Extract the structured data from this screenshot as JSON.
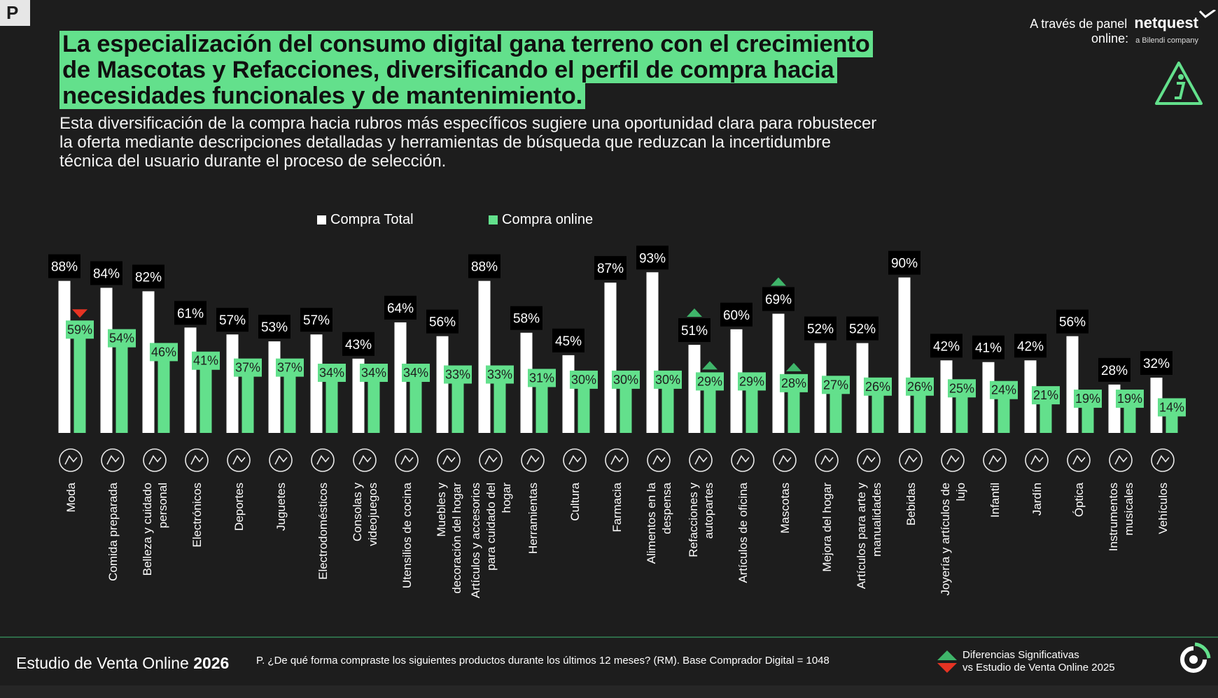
{
  "header": {
    "corner_badge": "P",
    "title": "La especialización del consumo digital gana terreno con el crecimiento de Mascotas y Refacciones, diversificando el perfil de compra hacia necesidades funcionales y de mantenimiento.",
    "subtitle": "Esta diversificación de la compra hacia rubros más específicos sugiere una oportunidad clara para robustecer la oferta mediante descripciones detalladas y herramientas de búsqueda que reduzcan la incertidumbre técnica del usuario durante el proceso de selección.",
    "brand_prefix_line1": "A través de panel",
    "brand_prefix_line2": "online:",
    "brand_name": "netquest",
    "brand_sub": "a Bilendi company",
    "info_icon": "info-triangle-icon"
  },
  "colors": {
    "background": "#1d1d1d",
    "total_bar": "#ffffff",
    "online_bar": "#63e08c",
    "up_arrow": "#3fb56a",
    "down_arrow": "#e63323"
  },
  "chart_data": {
    "type": "bar",
    "legend_position": "top-center",
    "series": [
      {
        "name": "Compra Total",
        "values": [
          88,
          84,
          82,
          61,
          57,
          53,
          57,
          43,
          64,
          56,
          88,
          58,
          45,
          87,
          93,
          51,
          60,
          69,
          52,
          52,
          90,
          42,
          41,
          42,
          56,
          28,
          32
        ]
      },
      {
        "name": "Compra online",
        "values": [
          59,
          54,
          46,
          41,
          37,
          37,
          34,
          34,
          34,
          33,
          33,
          31,
          30,
          30,
          30,
          29,
          29,
          28,
          27,
          26,
          26,
          25,
          24,
          21,
          19,
          19,
          14
        ]
      }
    ],
    "categories": [
      "Moda",
      "Comida preparada",
      "Belleza y cuidado personal",
      "Electrónicos",
      "Deportes",
      "Juguetes",
      "Electrodomésticos",
      "Consolas y videojuegos",
      "Utensilios de cocina",
      "Muebles y decoración del hogar",
      "Artículos y accesorios para cuidado del hogar",
      "Herramientas",
      "Cultura",
      "Farmacia",
      "Alimentos en la despensa",
      "Refacciones y autopartes",
      "Artículos de oficina",
      "Mascotas",
      "Mejora del hogar",
      "Artículos para arte y manualidades",
      "Bebidas",
      "Joyería y artículos de lujo",
      "Infantil",
      "Jardín",
      "Óptica",
      "Instrumentos musicales",
      "Vehículos"
    ],
    "category_lines": [
      [
        "Moda"
      ],
      [
        "Comida preparada"
      ],
      [
        "Belleza y cuidado",
        "personal"
      ],
      [
        "Electrónicos"
      ],
      [
        "Deportes"
      ],
      [
        "Juguetes"
      ],
      [
        "Electrodomésticos"
      ],
      [
        "Consolas y",
        "videojuegos"
      ],
      [
        "Utensilios de cocina"
      ],
      [
        "Muebles y",
        "decoración del hogar"
      ],
      [
        "Artículos y accesorios",
        "para cuidado del",
        "hogar"
      ],
      [
        "Herramientas"
      ],
      [
        "Cultura"
      ],
      [
        "Farmacia"
      ],
      [
        "Alimentos en la",
        "despensa"
      ],
      [
        "Refacciones y",
        "autopartes"
      ],
      [
        "Artículos de oficina"
      ],
      [
        "Mascotas"
      ],
      [
        "Mejora del hogar"
      ],
      [
        "Artículos para arte y",
        "manualidades"
      ],
      [
        "Bebidas"
      ],
      [
        "Joyería y artículos de",
        "lujo"
      ],
      [
        "Infantil"
      ],
      [
        "Jardín"
      ],
      [
        "Óptica"
      ],
      [
        "Instrumentos",
        "musicales"
      ],
      [
        "Vehículos"
      ]
    ],
    "total_labels": [
      "88%",
      "84%",
      "82%",
      "61%",
      "57%",
      "53%",
      "57%",
      "43%",
      "64%",
      "56%",
      "88%",
      "58%",
      "45%",
      "87%",
      "93%",
      "51%",
      "60%",
      "69%",
      "52%",
      "52%",
      "90%",
      "42%",
      "41%",
      "42%",
      "56%",
      "28%",
      "32%"
    ],
    "online_labels": [
      "59%",
      "54%",
      "46%",
      "41%",
      "37%",
      "37%",
      "34%",
      "34%",
      "34%",
      "33%",
      "33%",
      "31%",
      "30%",
      "30%",
      "30%",
      "29%",
      "29%",
      "28%",
      "27%",
      "26%",
      "26%",
      "25%",
      "24%",
      "21%",
      "19%",
      "19%",
      "14%"
    ],
    "category_icons": [
      "dress-icon",
      "delivery-scooter-icon",
      "beauty-face-icon",
      "computer-monitor-icon",
      "sports-balls-icon",
      "teddy-bear-icon",
      "washing-machine-icon",
      "gamepad-icon",
      "whisk-icon",
      "furniture-icon",
      "cleaning-bottles-icon",
      "tools-icon",
      "theater-icon",
      "pharmacy-icon",
      "grocery-box-icon",
      "tire-icon",
      "office-desk-icon",
      "pet-dog-cat-icon",
      "house-improvement-icon",
      "art-palette-icon",
      "bottles-icon",
      "diamond-jewelry-icon",
      "stroller-icon",
      "garden-tree-icon",
      "glasses-icon",
      "guitar-icon",
      "car-icon"
    ],
    "significance": [
      {
        "category_index": 0,
        "series": "Compra online",
        "direction": "down"
      },
      {
        "category_index": 15,
        "series": "Compra Total",
        "direction": "up"
      },
      {
        "category_index": 15,
        "series": "Compra online",
        "direction": "up"
      },
      {
        "category_index": 17,
        "series": "Compra Total",
        "direction": "up"
      },
      {
        "category_index": 17,
        "series": "Compra online",
        "direction": "up"
      }
    ],
    "ylim": [
      0,
      100
    ]
  },
  "footer": {
    "study_prefix": "Estudio de Venta Online",
    "study_year": "2026",
    "question": "P. ¿De qué forma compraste los siguientes productos durante los últimos 12 meses? (RM). Base Comprador Digital = 1048",
    "legend_line1": "Diferencias Significativas",
    "legend_line2": "vs Estudio de Venta Online 2025",
    "logo_icon": "brand-logo-icon"
  }
}
